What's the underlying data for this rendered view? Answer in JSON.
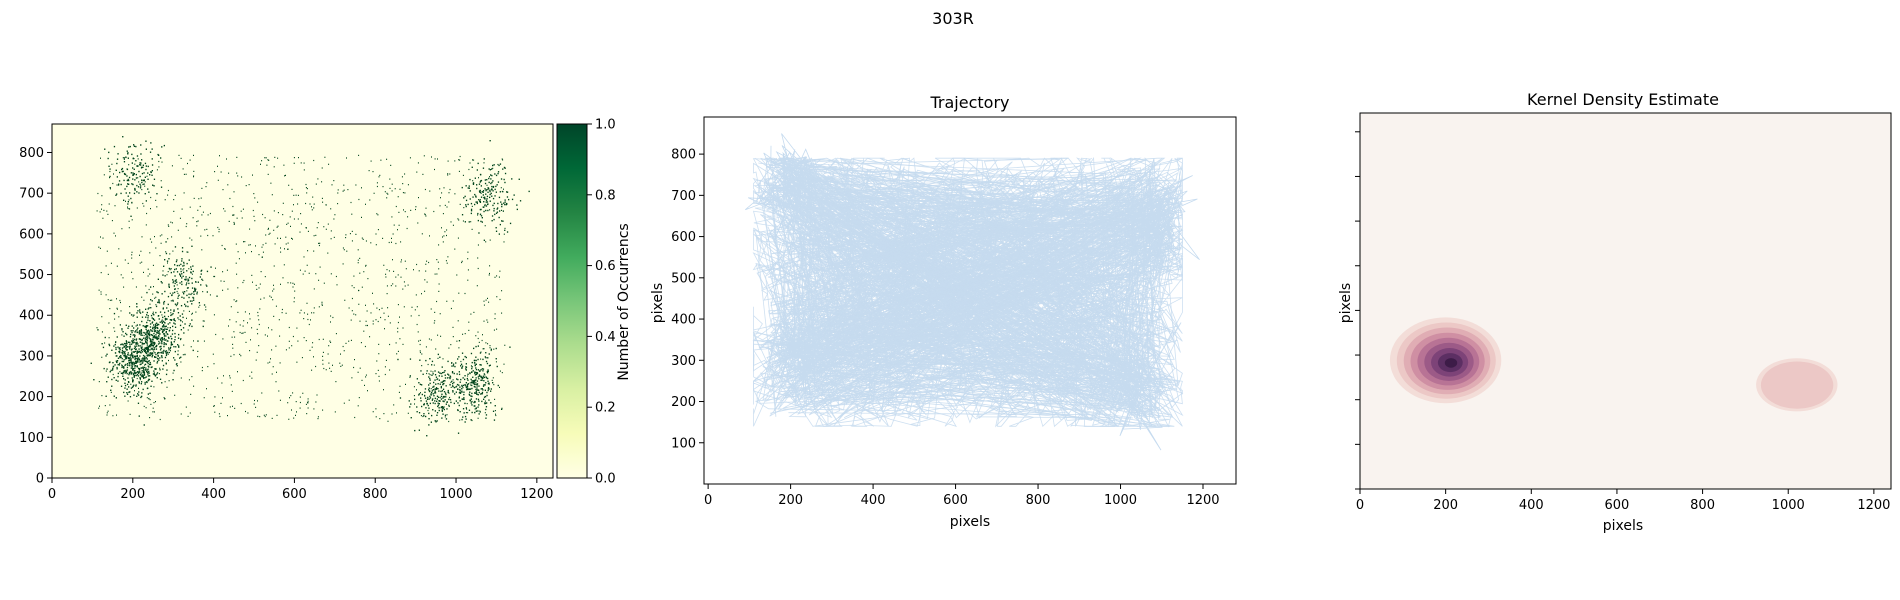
{
  "figure": {
    "suptitle": "303R"
  },
  "colors": {
    "heatmap_background": "#ffffe5",
    "heatmap_point": "#00441b",
    "colorbar_stops": [
      "#ffffe5",
      "#f7fcb9",
      "#d9f0a3",
      "#addd8e",
      "#78c679",
      "#41ab5d",
      "#238443",
      "#006837",
      "#004529"
    ],
    "trajectory_line": "#c6dbef",
    "kde_background": "#f9f3ef",
    "kde_levels": [
      "#f3ddd8",
      "#ecc8c6",
      "#e0adb4",
      "#cf8fa3",
      "#b87395",
      "#9c5a87",
      "#7d4378",
      "#5c2f63",
      "#3d1c48"
    ],
    "axis": "#000000"
  },
  "chart_data": [
    {
      "type": "heatmap",
      "panel": "occurrence-histogram",
      "title": "",
      "xlabel": "",
      "ylabel": "",
      "xlim": [
        0,
        1240
      ],
      "ylim": [
        0,
        870
      ],
      "xticks": [
        0,
        200,
        400,
        600,
        800,
        1000,
        1200
      ],
      "yticks": [
        0,
        100,
        200,
        300,
        400,
        500,
        600,
        700,
        800
      ],
      "colorbar": {
        "label": "Number of Occurrencs",
        "range": [
          0,
          1
        ],
        "ticks": [
          "0.0",
          "0.2",
          "0.4",
          "0.6",
          "0.8",
          "1.0"
        ],
        "colormap": "Greens"
      },
      "occupied_region": {
        "x": [
          110,
          1120
        ],
        "y": [
          140,
          795
        ]
      },
      "hotspots": [
        {
          "x": 200,
          "y": 290,
          "relative_density": 1.0
        },
        {
          "x": 260,
          "y": 350,
          "relative_density": 0.8
        },
        {
          "x": 1040,
          "y": 230,
          "relative_density": 0.6
        },
        {
          "x": 950,
          "y": 210,
          "relative_density": 0.4
        },
        {
          "x": 1080,
          "y": 700,
          "relative_density": 0.4
        },
        {
          "x": 200,
          "y": 750,
          "relative_density": 0.3
        },
        {
          "x": 320,
          "y": 480,
          "relative_density": 0.3
        }
      ]
    },
    {
      "type": "line",
      "panel": "trajectory",
      "title": "Trajectory",
      "xlabel": "pixels",
      "ylabel": "pixels",
      "xlim": [
        -10,
        1280
      ],
      "ylim": [
        0,
        890
      ],
      "xticks": [
        0,
        200,
        400,
        600,
        800,
        1000,
        1200
      ],
      "yticks": [
        100,
        200,
        300,
        400,
        500,
        600,
        700,
        800
      ],
      "extent": {
        "x": [
          50,
          1210
        ],
        "y": [
          50,
          850
        ]
      },
      "dense_regions": [
        {
          "x": 230,
          "y": 320
        },
        {
          "x": 1030,
          "y": 240
        },
        {
          "x": 1080,
          "y": 650
        },
        {
          "x": 200,
          "y": 720
        }
      ]
    },
    {
      "type": "area",
      "panel": "kernel-density-estimate",
      "title": "Kernel Density Estimate",
      "xlabel": "pixels",
      "ylabel": "pixels",
      "xlim": [
        0,
        1240
      ],
      "ylim": [
        0,
        920
      ],
      "xticks": [
        0,
        200,
        400,
        600,
        800,
        1000,
        1200
      ],
      "yticks_unlabeled": 8,
      "levels": 9,
      "peaks": [
        {
          "x": 200,
          "y": 315,
          "sx": 130,
          "sy": 105,
          "weight": 1.0
        },
        {
          "x": 1020,
          "y": 255,
          "sx": 95,
          "sy": 65,
          "weight": 0.2
        }
      ]
    }
  ]
}
